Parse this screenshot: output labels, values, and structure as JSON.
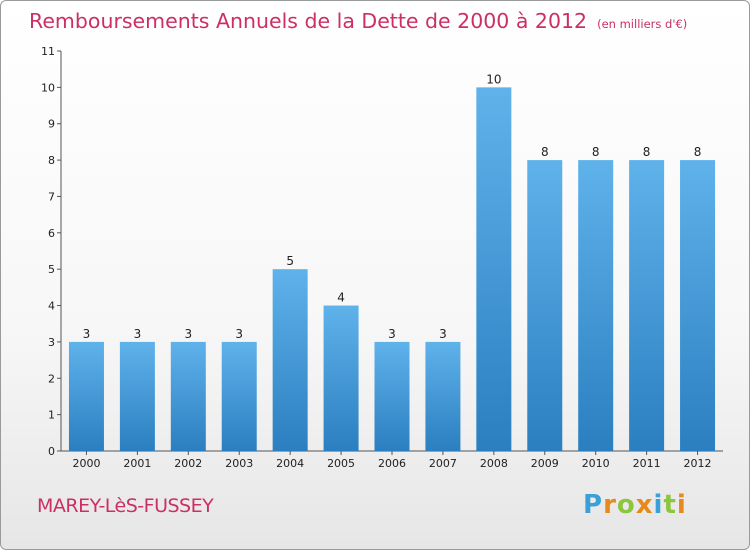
{
  "title": "Remboursements Annuels de la Dette de 2000 à 2012",
  "title_unit": "(en milliers d'€)",
  "commune": "MAREY-LèS-FUSSEY",
  "logo": {
    "text": "Proxiti",
    "letters": [
      {
        "ch": "P",
        "color": "#3aa0d8"
      },
      {
        "ch": "r",
        "color": "#e8891c"
      },
      {
        "ch": "o",
        "color": "#8cc63f"
      },
      {
        "ch": "x",
        "color": "#e8891c"
      },
      {
        "ch": "i",
        "color": "#3aa0d8"
      },
      {
        "ch": "t",
        "color": "#8cc63f"
      },
      {
        "ch": "i",
        "color": "#e8891c"
      }
    ]
  },
  "colors": {
    "title": "#cc2f62",
    "bar_top": "#5fb2ea",
    "bar_bottom": "#2b7fc0",
    "axis": "#555555",
    "grid": "#dddddd"
  },
  "chart_data": {
    "type": "bar",
    "title": "Remboursements Annuels de la Dette de 2000 à 2012",
    "xlabel": "",
    "ylabel": "",
    "categories": [
      "2000",
      "2001",
      "2002",
      "2003",
      "2004",
      "2005",
      "2006",
      "2007",
      "2008",
      "2009",
      "2010",
      "2011",
      "2012"
    ],
    "values": [
      3,
      3,
      3,
      3,
      5,
      4,
      3,
      3,
      10,
      8,
      8,
      8,
      8
    ],
    "ylim": [
      0,
      11
    ],
    "yticks": [
      0,
      1,
      2,
      3,
      4,
      5,
      6,
      7,
      8,
      9,
      10,
      11
    ],
    "grid": false,
    "legend": "none"
  }
}
